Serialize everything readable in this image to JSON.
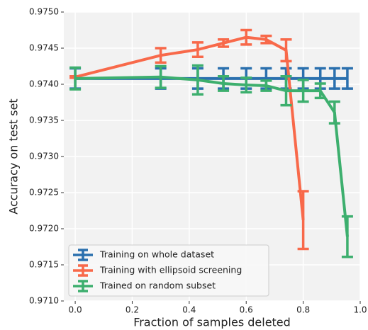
{
  "chart_data": {
    "type": "errorbar-line",
    "xlabel": "Fraction of samples deleted",
    "ylabel": "Accuracy on test set",
    "xlim": [
      -0.04,
      1.0
    ],
    "ylim": [
      0.971,
      0.975
    ],
    "xticks": [
      {
        "value": 0,
        "label": "0.0"
      },
      {
        "value": 0.2,
        "label": "0.2"
      },
      {
        "value": 0.4,
        "label": "0.4"
      },
      {
        "value": 0.6,
        "label": "0.6"
      },
      {
        "value": 0.8,
        "label": "0.8"
      },
      {
        "value": 1,
        "label": "1.0"
      }
    ],
    "yticks": [
      {
        "value": 0.971,
        "label": "0.9710"
      },
      {
        "value": 0.9715,
        "label": "0.9715"
      },
      {
        "value": 0.972,
        "label": "0.9720"
      },
      {
        "value": 0.9725,
        "label": "0.9725"
      },
      {
        "value": 0.973,
        "label": "0.9730"
      },
      {
        "value": 0.9735,
        "label": "0.9735"
      },
      {
        "value": 0.974,
        "label": "0.9740"
      },
      {
        "value": 0.9745,
        "label": "0.9745"
      },
      {
        "value": 0.975,
        "label": "0.9750"
      }
    ],
    "grid": true,
    "legend": "lower left",
    "series": [
      {
        "name": "Training on whole dataset",
        "color": "#2b70ae",
        "x": [
          0,
          0.3,
          0.43,
          0.52,
          0.6,
          0.67,
          0.74,
          0.8,
          0.86,
          0.91,
          0.955
        ],
        "values": [
          0.97408,
          0.97408,
          0.97408,
          0.97408,
          0.97408,
          0.97408,
          0.97408,
          0.97408,
          0.97408,
          0.97408,
          0.97408
        ],
        "errors": [
          0.00014,
          0.00014,
          0.00014,
          0.00014,
          0.00014,
          0.00014,
          0.00014,
          0.00014,
          0.00014,
          0.00014,
          0.00014
        ]
      },
      {
        "name": "Training with ellipsoid screening",
        "color": "#f8694a",
        "x": [
          0,
          0.3,
          0.43,
          0.52,
          0.6,
          0.67,
          0.74,
          0.8
        ],
        "values": [
          0.9741,
          0.9744,
          0.97448,
          0.97457,
          0.97465,
          0.97462,
          0.97447,
          0.97212
        ],
        "errors": [
          1e-05,
          0.0001,
          0.0001,
          5e-05,
          0.0001,
          5e-05,
          0.00015,
          0.0004
        ]
      },
      {
        "name": "Trained on random subset",
        "color": "#3daf6e",
        "x": [
          0,
          0.3,
          0.43,
          0.52,
          0.6,
          0.67,
          0.74,
          0.8,
          0.86,
          0.91,
          0.955
        ],
        "values": [
          0.97408,
          0.9741,
          0.97406,
          0.97401,
          0.97399,
          0.97398,
          0.97391,
          0.97391,
          0.97391,
          0.97361,
          0.97189
        ],
        "errors": [
          0.00015,
          0.00015,
          0.0002,
          0.0001,
          0.0001,
          7e-05,
          0.0002,
          0.00015,
          0.0001,
          0.00015,
          0.00028
        ]
      }
    ]
  }
}
